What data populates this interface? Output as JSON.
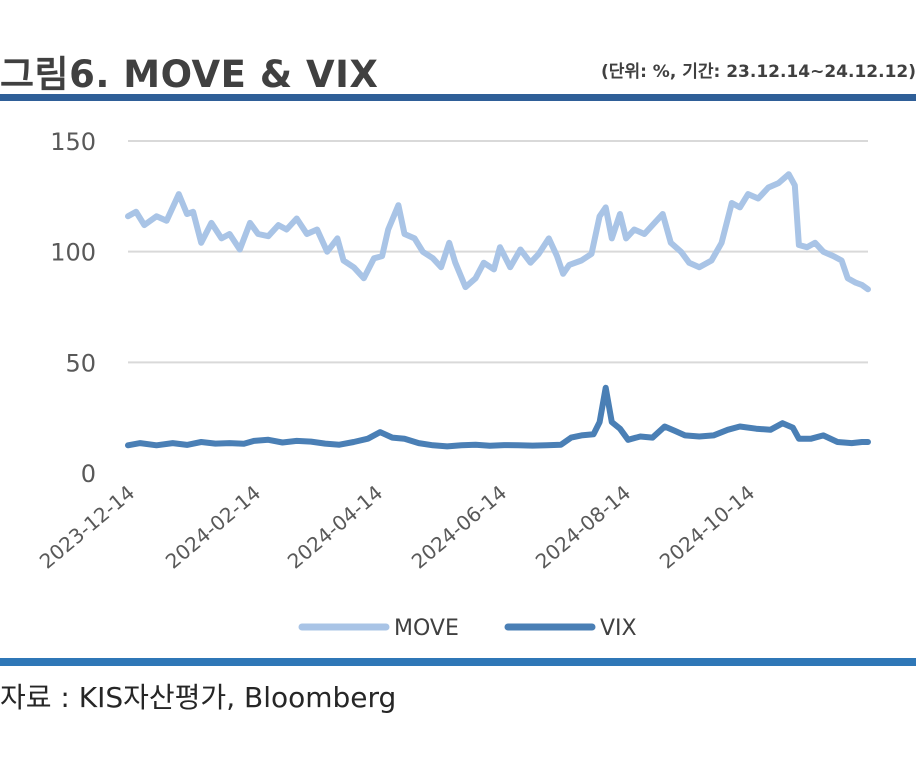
{
  "header": {
    "title": "그림6. MOVE & VIX",
    "unit_note": "(단위: %, 기간: 23.12.14~24.12.12)"
  },
  "footer": {
    "source": "자료 : KIS자산평가, Bloomberg"
  },
  "colors": {
    "accent_bar": "#2f5f98",
    "footer_bar": "#2f77b7",
    "move": "#a9c4e6",
    "vix": "#4a7fb5",
    "grid": "#d9d9d9"
  },
  "chart_data": {
    "type": "line",
    "title": "",
    "xlabel": "",
    "ylabel": "",
    "ylim": [
      0,
      150
    ],
    "yticks": [
      "0",
      "50",
      "100",
      "150"
    ],
    "xlim": [
      "2023-12-14",
      "2024-12-12"
    ],
    "xticks": [
      "2023-12-14",
      "2024-02-14",
      "2024-04-14",
      "2024-06-14",
      "2024-08-14",
      "2024-10-14"
    ],
    "grid": "horizontal",
    "legend": "bottom",
    "series": [
      {
        "name": "MOVE",
        "points": [
          [
            "2023-12-14",
            116
          ],
          [
            "2023-12-18",
            118
          ],
          [
            "2023-12-22",
            112
          ],
          [
            "2023-12-28",
            116
          ],
          [
            "2024-01-02",
            114
          ],
          [
            "2024-01-08",
            126
          ],
          [
            "2024-01-12",
            117
          ],
          [
            "2024-01-15",
            118
          ],
          [
            "2024-01-19",
            104
          ],
          [
            "2024-01-24",
            113
          ],
          [
            "2024-01-29",
            106
          ],
          [
            "2024-02-02",
            108
          ],
          [
            "2024-02-07",
            101
          ],
          [
            "2024-02-12",
            113
          ],
          [
            "2024-02-16",
            108
          ],
          [
            "2024-02-21",
            107
          ],
          [
            "2024-02-26",
            112
          ],
          [
            "2024-03-01",
            110
          ],
          [
            "2024-03-06",
            115
          ],
          [
            "2024-03-11",
            108
          ],
          [
            "2024-03-16",
            110
          ],
          [
            "2024-03-21",
            100
          ],
          [
            "2024-03-26",
            106
          ],
          [
            "2024-03-29",
            96
          ],
          [
            "2024-04-03",
            93
          ],
          [
            "2024-04-08",
            88
          ],
          [
            "2024-04-13",
            97
          ],
          [
            "2024-04-17",
            98
          ],
          [
            "2024-04-20",
            110
          ],
          [
            "2024-04-25",
            121
          ],
          [
            "2024-04-28",
            108
          ],
          [
            "2024-05-03",
            106
          ],
          [
            "2024-05-07",
            100
          ],
          [
            "2024-05-12",
            97
          ],
          [
            "2024-05-16",
            93
          ],
          [
            "2024-05-20",
            104
          ],
          [
            "2024-05-23",
            95
          ],
          [
            "2024-05-28",
            84
          ],
          [
            "2024-06-02",
            88
          ],
          [
            "2024-06-06",
            95
          ],
          [
            "2024-06-11",
            92
          ],
          [
            "2024-06-14",
            102
          ],
          [
            "2024-06-19",
            93
          ],
          [
            "2024-06-24",
            101
          ],
          [
            "2024-06-29",
            95
          ],
          [
            "2024-07-03",
            99
          ],
          [
            "2024-07-08",
            106
          ],
          [
            "2024-07-12",
            98
          ],
          [
            "2024-07-15",
            90
          ],
          [
            "2024-07-18",
            94
          ],
          [
            "2024-07-24",
            96
          ],
          [
            "2024-07-29",
            99
          ],
          [
            "2024-08-02",
            116
          ],
          [
            "2024-08-05",
            120
          ],
          [
            "2024-08-08",
            106
          ],
          [
            "2024-08-12",
            117
          ],
          [
            "2024-08-15",
            106
          ],
          [
            "2024-08-19",
            110
          ],
          [
            "2024-08-24",
            108
          ],
          [
            "2024-08-28",
            112
          ],
          [
            "2024-09-02",
            117
          ],
          [
            "2024-09-06",
            104
          ],
          [
            "2024-09-11",
            100
          ],
          [
            "2024-09-15",
            95
          ],
          [
            "2024-09-20",
            93
          ],
          [
            "2024-09-26",
            96
          ],
          [
            "2024-10-01",
            104
          ],
          [
            "2024-10-06",
            122
          ],
          [
            "2024-10-10",
            120
          ],
          [
            "2024-10-14",
            126
          ],
          [
            "2024-10-19",
            124
          ],
          [
            "2024-10-24",
            129
          ],
          [
            "2024-10-29",
            131
          ],
          [
            "2024-11-03",
            135
          ],
          [
            "2024-11-06",
            130
          ],
          [
            "2024-11-08",
            103
          ],
          [
            "2024-11-12",
            102
          ],
          [
            "2024-11-16",
            104
          ],
          [
            "2024-11-20",
            100
          ],
          [
            "2024-11-25",
            98
          ],
          [
            "2024-11-29",
            96
          ],
          [
            "2024-12-02",
            88
          ],
          [
            "2024-12-06",
            86
          ],
          [
            "2024-12-09",
            85
          ],
          [
            "2024-12-12",
            83
          ]
        ]
      },
      {
        "name": "VIX",
        "points": [
          [
            "2023-12-14",
            12.5
          ],
          [
            "2023-12-20",
            13.5
          ],
          [
            "2023-12-28",
            12.5
          ],
          [
            "2024-01-05",
            13.5
          ],
          [
            "2024-01-12",
            12.7
          ],
          [
            "2024-01-19",
            14
          ],
          [
            "2024-01-26",
            13.3
          ],
          [
            "2024-02-02",
            13.5
          ],
          [
            "2024-02-09",
            13.2
          ],
          [
            "2024-02-14",
            14.5
          ],
          [
            "2024-02-21",
            15
          ],
          [
            "2024-02-28",
            13.8
          ],
          [
            "2024-03-06",
            14.5
          ],
          [
            "2024-03-13",
            14.2
          ],
          [
            "2024-03-20",
            13.3
          ],
          [
            "2024-03-27",
            12.8
          ],
          [
            "2024-04-03",
            14
          ],
          [
            "2024-04-10",
            15.5
          ],
          [
            "2024-04-16",
            18.5
          ],
          [
            "2024-04-22",
            16
          ],
          [
            "2024-04-28",
            15.5
          ],
          [
            "2024-05-05",
            13.5
          ],
          [
            "2024-05-12",
            12.5
          ],
          [
            "2024-05-19",
            12
          ],
          [
            "2024-05-26",
            12.5
          ],
          [
            "2024-06-02",
            12.8
          ],
          [
            "2024-06-09",
            12.3
          ],
          [
            "2024-06-16",
            12.6
          ],
          [
            "2024-06-23",
            12.5
          ],
          [
            "2024-06-30",
            12.4
          ],
          [
            "2024-07-07",
            12.5
          ],
          [
            "2024-07-14",
            12.8
          ],
          [
            "2024-07-19",
            16
          ],
          [
            "2024-07-24",
            17
          ],
          [
            "2024-07-30",
            17.5
          ],
          [
            "2024-08-02",
            23
          ],
          [
            "2024-08-05",
            38.5
          ],
          [
            "2024-08-08",
            23
          ],
          [
            "2024-08-12",
            20
          ],
          [
            "2024-08-16",
            15
          ],
          [
            "2024-08-22",
            16.5
          ],
          [
            "2024-08-28",
            16
          ],
          [
            "2024-09-03",
            21
          ],
          [
            "2024-09-08",
            19
          ],
          [
            "2024-09-13",
            17
          ],
          [
            "2024-09-20",
            16.5
          ],
          [
            "2024-09-27",
            17
          ],
          [
            "2024-10-04",
            19.5
          ],
          [
            "2024-10-10",
            21
          ],
          [
            "2024-10-18",
            20
          ],
          [
            "2024-10-25",
            19.5
          ],
          [
            "2024-10-31",
            22.5
          ],
          [
            "2024-11-05",
            20.5
          ],
          [
            "2024-11-08",
            15.5
          ],
          [
            "2024-11-14",
            15.5
          ],
          [
            "2024-11-20",
            17
          ],
          [
            "2024-11-27",
            14
          ],
          [
            "2024-12-04",
            13.5
          ],
          [
            "2024-12-09",
            14
          ],
          [
            "2024-12-12",
            14
          ]
        ]
      }
    ]
  }
}
